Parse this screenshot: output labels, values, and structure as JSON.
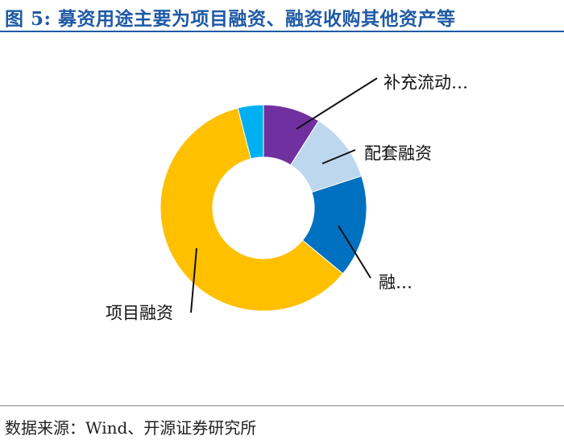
{
  "header": {
    "title": "图 5:  募资用途主要为项目融资、融资收购其他资产等"
  },
  "footer": {
    "source": "数据来源：Wind、开源证券研究所"
  },
  "chart_data": {
    "type": "pie",
    "donut": true,
    "title": "",
    "slices": [
      {
        "label": "补充流动…",
        "value": 9,
        "color": "#7030a0"
      },
      {
        "label": "配套融资",
        "value": 11,
        "color": "#bdd7ee"
      },
      {
        "label": "融…",
        "value": 16,
        "color": "#0070c0"
      },
      {
        "label": "项目融资",
        "value": 60,
        "color": "#ffc000"
      },
      {
        "label": "",
        "value": 4,
        "color": "#00b0f0"
      }
    ]
  }
}
